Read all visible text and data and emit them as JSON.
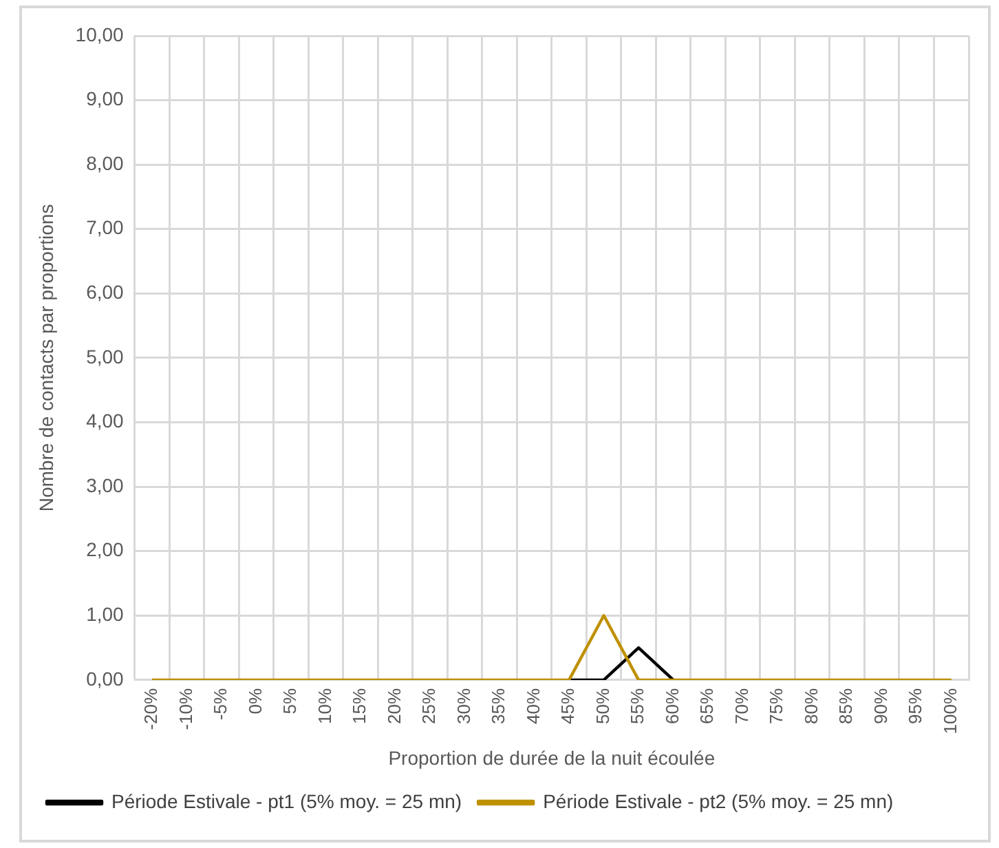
{
  "chart_data": {
    "type": "line",
    "xlabel": "Proportion de durée de la nuit écoulée",
    "ylabel": "Nombre de contacts par proportions",
    "categories": [
      "-20%",
      "-10%",
      "-5%",
      "0%",
      "5%",
      "10%",
      "15%",
      "20%",
      "25%",
      "30%",
      "35%",
      "40%",
      "45%",
      "50%",
      "55%",
      "60%",
      "65%",
      "70%",
      "75%",
      "80%",
      "85%",
      "90%",
      "95%",
      "100%"
    ],
    "series": [
      {
        "name": "Période Estivale - pt1 (5% moy. = 25 mn)",
        "color": "#000000",
        "values": [
          null,
          null,
          null,
          null,
          null,
          null,
          null,
          null,
          null,
          null,
          null,
          null,
          0,
          0,
          0.5,
          0,
          null,
          null,
          null,
          null,
          null,
          null,
          null,
          null
        ]
      },
      {
        "name": "Période Estivale - pt2 (5% moy. = 25 mn)",
        "color": "#bf9000",
        "values": [
          0,
          0,
          0,
          0,
          0,
          0,
          0,
          0,
          0,
          0,
          0,
          0,
          0,
          1,
          0,
          0,
          0,
          0,
          0,
          0,
          0,
          0,
          0,
          0
        ]
      }
    ],
    "ylim": [
      0,
      10
    ],
    "yticks": [
      {
        "value": 0,
        "label": "0,00"
      },
      {
        "value": 1,
        "label": "1,00"
      },
      {
        "value": 2,
        "label": "2,00"
      },
      {
        "value": 3,
        "label": "3,00"
      },
      {
        "value": 4,
        "label": "4,00"
      },
      {
        "value": 5,
        "label": "5,00"
      },
      {
        "value": 6,
        "label": "6,00"
      },
      {
        "value": 7,
        "label": "7,00"
      },
      {
        "value": 8,
        "label": "8,00"
      },
      {
        "value": 9,
        "label": "9,00"
      },
      {
        "value": 10,
        "label": "10,00"
      }
    ],
    "grid": true,
    "legend": "bottom",
    "marker": "none",
    "line_style": "solid"
  }
}
